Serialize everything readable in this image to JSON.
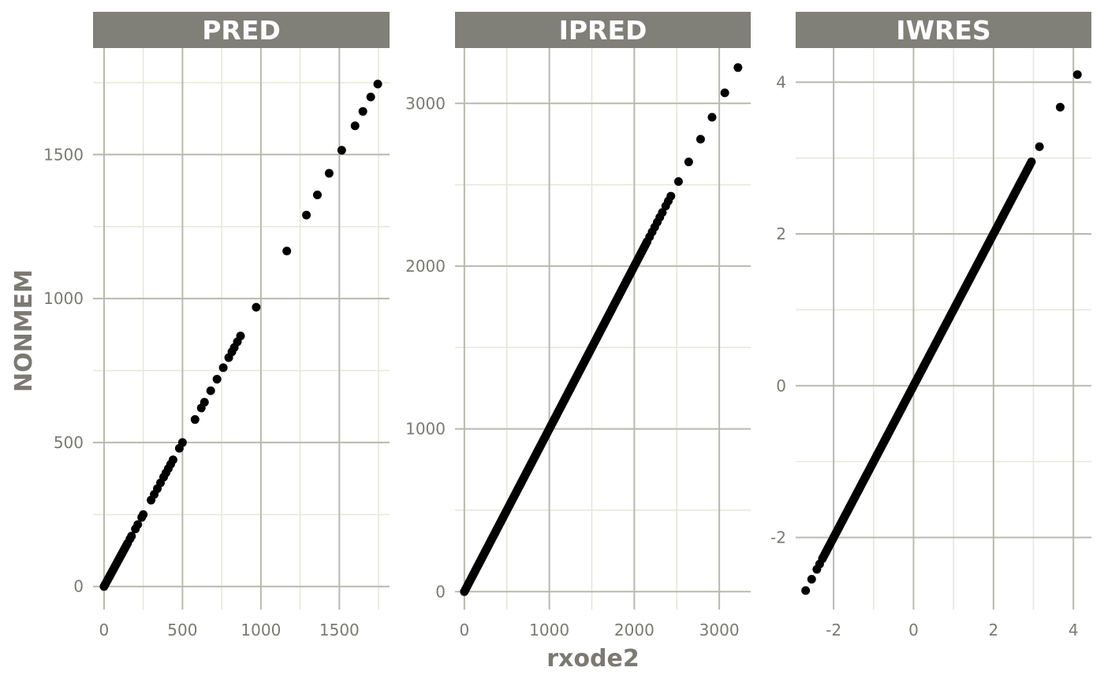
{
  "xlabel": "rxode2",
  "ylabel": "NONMEM",
  "chart_data": [
    {
      "type": "scatter",
      "panel": "PRED",
      "xlim": [
        -70,
        1820
      ],
      "ylim": [
        -80,
        1870
      ],
      "x_ticks": [
        0,
        500,
        1000,
        1500
      ],
      "y_ticks": [
        0,
        500,
        1000,
        1500
      ],
      "x_tick_labels": [
        "0",
        "500",
        "1000",
        "1500"
      ],
      "y_tick_labels": [
        "0",
        "500",
        "1000",
        "1500"
      ],
      "x": [
        1165,
        1290,
        1360,
        1435,
        1515,
        1600,
        1650,
        1700,
        1745,
        970,
        870,
        850,
        830,
        815,
        795,
        760,
        720,
        680,
        640,
        620,
        580,
        500,
        480,
        440,
        425,
        410,
        395,
        380,
        360,
        340,
        320,
        300,
        250,
        240,
        215,
        200,
        175,
        165
      ],
      "y": [
        1165,
        1290,
        1360,
        1435,
        1515,
        1600,
        1650,
        1700,
        1745,
        970,
        870,
        850,
        830,
        815,
        795,
        760,
        720,
        680,
        640,
        620,
        580,
        500,
        480,
        440,
        425,
        410,
        395,
        380,
        360,
        340,
        320,
        300,
        250,
        240,
        215,
        200,
        175,
        165
      ],
      "dense_segments": [
        [
          0,
          150
        ]
      ]
    },
    {
      "type": "scatter",
      "panel": "IPRED",
      "xlim": [
        -110,
        3370
      ],
      "ylim": [
        -110,
        3340
      ],
      "x_ticks": [
        0,
        1000,
        2000,
        3000
      ],
      "y_ticks": [
        0,
        1000,
        2000,
        3000
      ],
      "x_tick_labels": [
        "0",
        "1000",
        "2000",
        "3000"
      ],
      "y_tick_labels": [
        "0",
        "1000",
        "2000",
        "3000"
      ],
      "x": [
        3220,
        3065,
        2915,
        2780,
        2640,
        2520,
        2430,
        2400,
        2370,
        2330,
        2300,
        2270,
        2240,
        2210,
        2180
      ],
      "y": [
        3220,
        3065,
        2915,
        2780,
        2640,
        2520,
        2430,
        2400,
        2370,
        2330,
        2300,
        2270,
        2240,
        2210,
        2180
      ],
      "dense_segments": [
        [
          0,
          2150
        ]
      ]
    },
    {
      "type": "scatter",
      "panel": "IWRES",
      "xlim": [
        -2.95,
        4.45
      ],
      "ylim": [
        -2.95,
        4.45
      ],
      "x_ticks": [
        -2,
        0,
        2,
        4
      ],
      "y_ticks": [
        -2,
        0,
        2,
        4
      ],
      "x_tick_labels": [
        "-2",
        "0",
        "2",
        "4"
      ],
      "y_tick_labels": [
        "-2",
        "0",
        "2",
        "4"
      ],
      "x": [
        4.1,
        3.67,
        3.15,
        -2.7,
        -2.55,
        -2.42,
        -2.35,
        -2.28
      ],
      "y": [
        4.1,
        3.67,
        3.15,
        -2.7,
        -2.55,
        -2.42,
        -2.35,
        -2.28
      ],
      "dense_segments": [
        [
          -2.25,
          2.95
        ]
      ]
    }
  ]
}
